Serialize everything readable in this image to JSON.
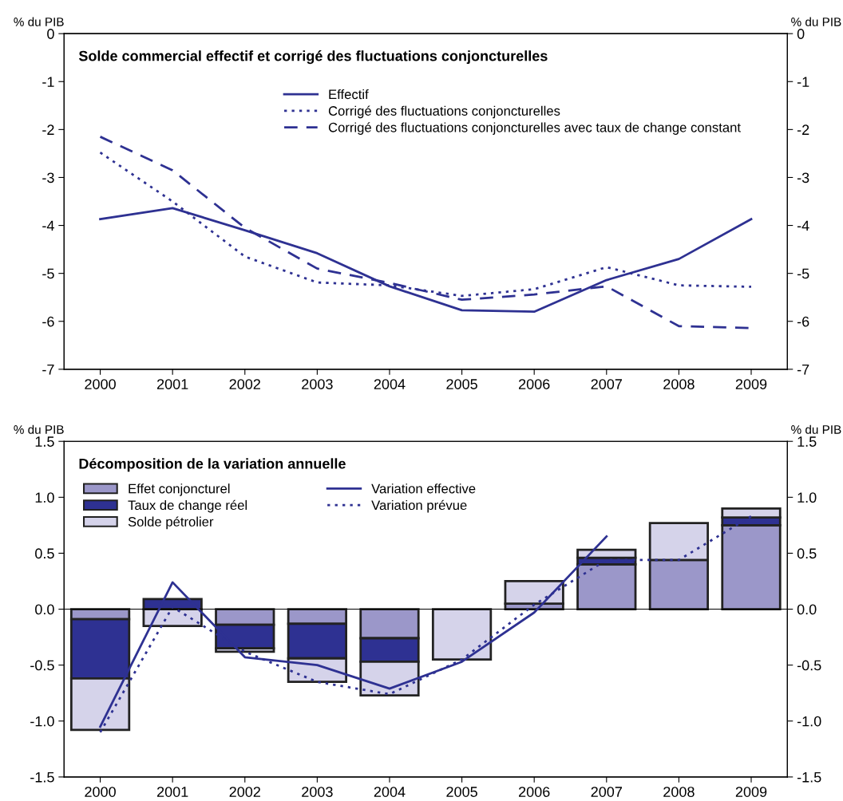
{
  "chart_data": [
    {
      "type": "line",
      "title": "Solde commercial effectif et corrigé des fluctuations conjoncturelles",
      "ylabel": "% du PIB",
      "y2label": "% du PIB",
      "categories": [
        "2000",
        "2001",
        "2002",
        "2003",
        "2004",
        "2005",
        "2006",
        "2007",
        "2008",
        "2009"
      ],
      "ylim": [
        -7,
        0
      ],
      "yticks": [
        -7,
        -6,
        -5,
        -4,
        -3,
        -2,
        -1,
        0
      ],
      "y2lim": [
        -7,
        0
      ],
      "y2ticks": [
        -7,
        -6,
        -5,
        -4,
        -3,
        -2,
        -1,
        0
      ],
      "grid": false,
      "legend": "top",
      "series": [
        {
          "name": "Effectif",
          "color": "#2e3192",
          "line_style": "solid",
          "values": [
            -3.87,
            -3.64,
            -4.1,
            -4.58,
            -5.27,
            -5.77,
            -5.8,
            -5.14,
            -4.7,
            -3.87
          ]
        },
        {
          "name": "Corrigé des fluctuations conjoncturelles",
          "color": "#2e3192",
          "line_style": "dotted",
          "values": [
            -2.48,
            -3.5,
            -4.65,
            -5.19,
            -5.25,
            -5.47,
            -5.33,
            -4.87,
            -5.25,
            -5.28
          ]
        },
        {
          "name": "Corrigé des fluctuations conjoncturelles avec taux de change constant",
          "color": "#2e3192",
          "line_style": "dashed",
          "values": [
            -2.15,
            -2.85,
            -4.05,
            -4.9,
            -5.2,
            -5.55,
            -5.44,
            -5.27,
            -6.1,
            -6.14
          ]
        }
      ]
    },
    {
      "type": "bar",
      "stacked": true,
      "title": "Décomposition de la variation annuelle",
      "ylabel": "% du PIB",
      "y2label": "% du PIB",
      "categories": [
        "2000",
        "2001",
        "2002",
        "2003",
        "2004",
        "2005",
        "2006",
        "2007",
        "2008",
        "2009"
      ],
      "ylim": [
        -1.5,
        1.5
      ],
      "yticks": [
        -1.5,
        {
          "value": -1,
          "label": "-1.0"
        },
        -0.5,
        {
          "value": 0,
          "label": "0.0"
        },
        0.5,
        {
          "value": 1,
          "label": "1.0"
        },
        1.5
      ],
      "y2lim": [
        -1.5,
        1.5
      ],
      "y2ticks": [
        -1.5,
        {
          "value": -1,
          "label": "-1.0"
        },
        -0.5,
        {
          "value": 0,
          "label": "0.0"
        },
        0.5,
        {
          "value": 1,
          "label": "1.0"
        },
        1.5
      ],
      "grid": false,
      "legend": "top left",
      "ref_lines": [
        {
          "axis": "y",
          "value": 0.0,
          "color": "#000000"
        }
      ],
      "series": [
        {
          "name": "Effet conjoncturel",
          "color": "#9b97c9",
          "values": [
            -0.09,
            null,
            -0.14,
            -0.13,
            -0.26,
            null,
            0.05,
            0.4,
            0.44,
            0.75
          ]
        },
        {
          "name": "Taux de change réel",
          "color": "#2e3192",
          "values": [
            -0.53,
            0.09,
            -0.21,
            -0.31,
            -0.21,
            null,
            null,
            0.06,
            null,
            0.07
          ]
        },
        {
          "name": "Solde pétrolier",
          "color": "#d5d3ea",
          "values": [
            -0.46,
            -0.15,
            -0.03,
            -0.21,
            -0.3,
            -0.45,
            0.2,
            0.07,
            0.33,
            0.08
          ]
        },
        {
          "name": "Variation effective",
          "type": "line",
          "color": "#2e3192",
          "line_style": "solid",
          "values": [
            -1.05,
            0.24,
            -0.43,
            -0.5,
            -0.71,
            -0.47,
            -0.03,
            0.65,
            null,
            null
          ]
        },
        {
          "name": "Variation prévue",
          "type": "line",
          "color": "#2e3192",
          "line_style": "dotted",
          "values": [
            -1.1,
            0.02,
            -0.38,
            -0.65,
            -0.76,
            -0.45,
            0.04,
            0.44,
            0.44,
            0.83
          ]
        }
      ]
    }
  ]
}
